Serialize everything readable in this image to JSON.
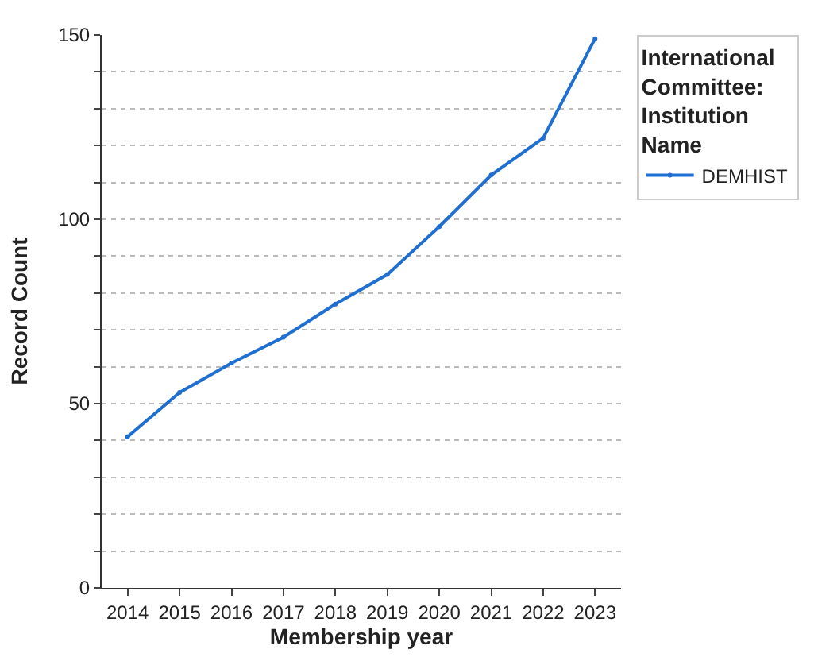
{
  "chart_data": {
    "type": "line",
    "xlabel": "Membership year",
    "ylabel": "Record Count",
    "legend_title": "International\nCommittee:\nInstitution\nName",
    "categories": [
      "2014",
      "2015",
      "2016",
      "2017",
      "2018",
      "2019",
      "2020",
      "2021",
      "2022",
      "2023"
    ],
    "series": [
      {
        "name": "DEMHIST",
        "color": "#1f6fd1",
        "values": [
          41,
          53,
          61,
          68,
          77,
          85,
          98,
          112,
          122,
          149
        ]
      }
    ],
    "ylim": [
      0,
      150
    ],
    "yticks": [
      0,
      {
        "value": 10,
        "label": null
      },
      {
        "value": 20,
        "label": null
      },
      {
        "value": 30,
        "label": null
      },
      {
        "value": 40,
        "label": null
      },
      50,
      {
        "value": 60,
        "label": null
      },
      {
        "value": 70,
        "label": null
      },
      {
        "value": 80,
        "label": null
      },
      {
        "value": 90,
        "label": null
      },
      100,
      {
        "value": 110,
        "label": null
      },
      {
        "value": 120,
        "label": null
      },
      {
        "value": 130,
        "label": null
      },
      {
        "value": 140,
        "label": null
      },
      150
    ],
    "grid": "y",
    "legend": "top right",
    "marker": "circle",
    "line_style": "solid"
  }
}
